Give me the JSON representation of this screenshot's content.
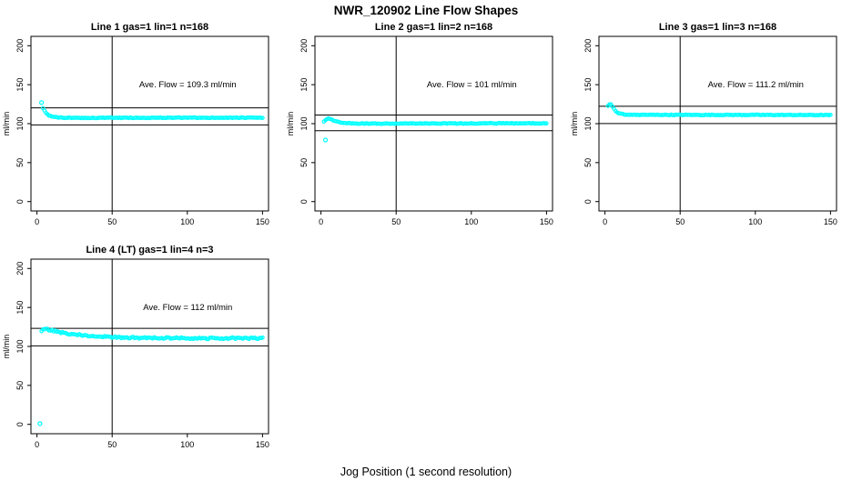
{
  "page": {
    "main_title": "NWR_120902  Line Flow Shapes",
    "bottom_axis_label": "Jog Position (1 second resolution)",
    "background_color": "#FFFFFF",
    "point_color": "#00FFFF",
    "axis_color": "#000000"
  },
  "chart_data": [
    {
      "type": "scatter",
      "title": "Line 1 gas=1 lin=1 n=168",
      "ylabel": "ml/min",
      "ave_flow_text": "Ave. Flow =  109.3  ml/min",
      "ave_flow_ml_min": 109.3,
      "xticks": [
        0,
        50,
        100,
        150
      ],
      "yticks": [
        0,
        50,
        100,
        150,
        200
      ],
      "xlim": [
        -4,
        154
      ],
      "ylim": [
        -12,
        212
      ],
      "ref_hlines": [
        120.2,
        98.4
      ],
      "ref_vline": 50,
      "outlier_points": [
        [
          3,
          127
        ]
      ],
      "curve_keypoints": [
        [
          4,
          120
        ],
        [
          5,
          117
        ],
        [
          6,
          114
        ],
        [
          7,
          112
        ],
        [
          8,
          110.5
        ],
        [
          10,
          109
        ],
        [
          12,
          108.3
        ],
        [
          15,
          107.8
        ],
        [
          20,
          107.5
        ],
        [
          30,
          107.4
        ],
        [
          50,
          107.5
        ],
        [
          100,
          107.6
        ],
        [
          150,
          107.6
        ]
      ],
      "x_range": [
        4,
        150
      ],
      "scatter_jitter": 0.4
    },
    {
      "type": "scatter",
      "title": "Line 2 gas=1 lin=2 n=168",
      "ylabel": "ml/min",
      "ave_flow_text": "Ave. Flow =  101  ml/min",
      "ave_flow_ml_min": 101,
      "xticks": [
        0,
        50,
        100,
        150
      ],
      "yticks": [
        0,
        50,
        100,
        150,
        200
      ],
      "xlim": [
        -4,
        154
      ],
      "ylim": [
        -12,
        212
      ],
      "ref_hlines": [
        111.1,
        90.9
      ],
      "ref_vline": 50,
      "outlier_points": [
        [
          3,
          79
        ]
      ],
      "curve_keypoints": [
        [
          2,
          102.5
        ],
        [
          3,
          104.5
        ],
        [
          4,
          106
        ],
        [
          5,
          106.5
        ],
        [
          6,
          106
        ],
        [
          8,
          104.5
        ],
        [
          10,
          103
        ],
        [
          13,
          101.5
        ],
        [
          17,
          100.7
        ],
        [
          25,
          100.1
        ],
        [
          40,
          100
        ],
        [
          70,
          100.2
        ],
        [
          110,
          100.4
        ],
        [
          150,
          100.5
        ]
      ],
      "x_range": [
        2,
        150
      ],
      "scatter_jitter": 0.4
    },
    {
      "type": "scatter",
      "title": "Line 3 gas=1 lin=3 n=168",
      "ylabel": "ml/min",
      "ave_flow_text": "Ave. Flow =  111.2  ml/min",
      "ave_flow_ml_min": 111.2,
      "xticks": [
        0,
        50,
        100,
        150
      ],
      "yticks": [
        0,
        50,
        100,
        150,
        200
      ],
      "xlim": [
        -4,
        154
      ],
      "ylim": [
        -12,
        212
      ],
      "ref_hlines": [
        122.3,
        100.1
      ],
      "ref_vline": 50,
      "outlier_points": [],
      "curve_keypoints": [
        [
          2,
          123
        ],
        [
          3,
          125
        ],
        [
          4,
          124.5
        ],
        [
          5,
          122
        ],
        [
          6,
          119
        ],
        [
          7,
          116.5
        ],
        [
          8,
          114.5
        ],
        [
          10,
          112.8
        ],
        [
          13,
          111.8
        ],
        [
          18,
          111.4
        ],
        [
          30,
          111.3
        ],
        [
          60,
          111.2
        ],
        [
          100,
          111.2
        ],
        [
          150,
          111
        ]
      ],
      "x_range": [
        2,
        150
      ],
      "scatter_jitter": 0.4
    },
    {
      "type": "scatter",
      "title": "Line 4 (LT) gas=1 lin=4 n=3",
      "ylabel": "ml/min",
      "ave_flow_text": "Ave. Flow =  112  ml/min",
      "ave_flow_ml_min": 112,
      "xticks": [
        0,
        50,
        100,
        150
      ],
      "yticks": [
        0,
        50,
        100,
        150,
        200
      ],
      "xlim": [
        -4,
        154
      ],
      "ylim": [
        -12,
        212
      ],
      "ref_hlines": [
        123.2,
        100.8
      ],
      "ref_vline": 50,
      "outlier_points": [
        [
          2,
          1
        ]
      ],
      "curve_keypoints": [
        [
          3,
          119
        ],
        [
          4,
          121
        ],
        [
          5,
          122.5
        ],
        [
          6,
          122.5
        ],
        [
          8,
          121.5
        ],
        [
          10,
          120.5
        ],
        [
          14,
          118.5
        ],
        [
          18,
          117
        ],
        [
          24,
          115.5
        ],
        [
          30,
          114.3
        ],
        [
          38,
          113.2
        ],
        [
          48,
          112.2
        ],
        [
          60,
          111.3
        ],
        [
          75,
          110.8
        ],
        [
          95,
          110.5
        ],
        [
          120,
          110.4
        ],
        [
          150,
          110.6
        ]
      ],
      "x_range": [
        3,
        150
      ],
      "scatter_jitter": 1.1
    }
  ]
}
